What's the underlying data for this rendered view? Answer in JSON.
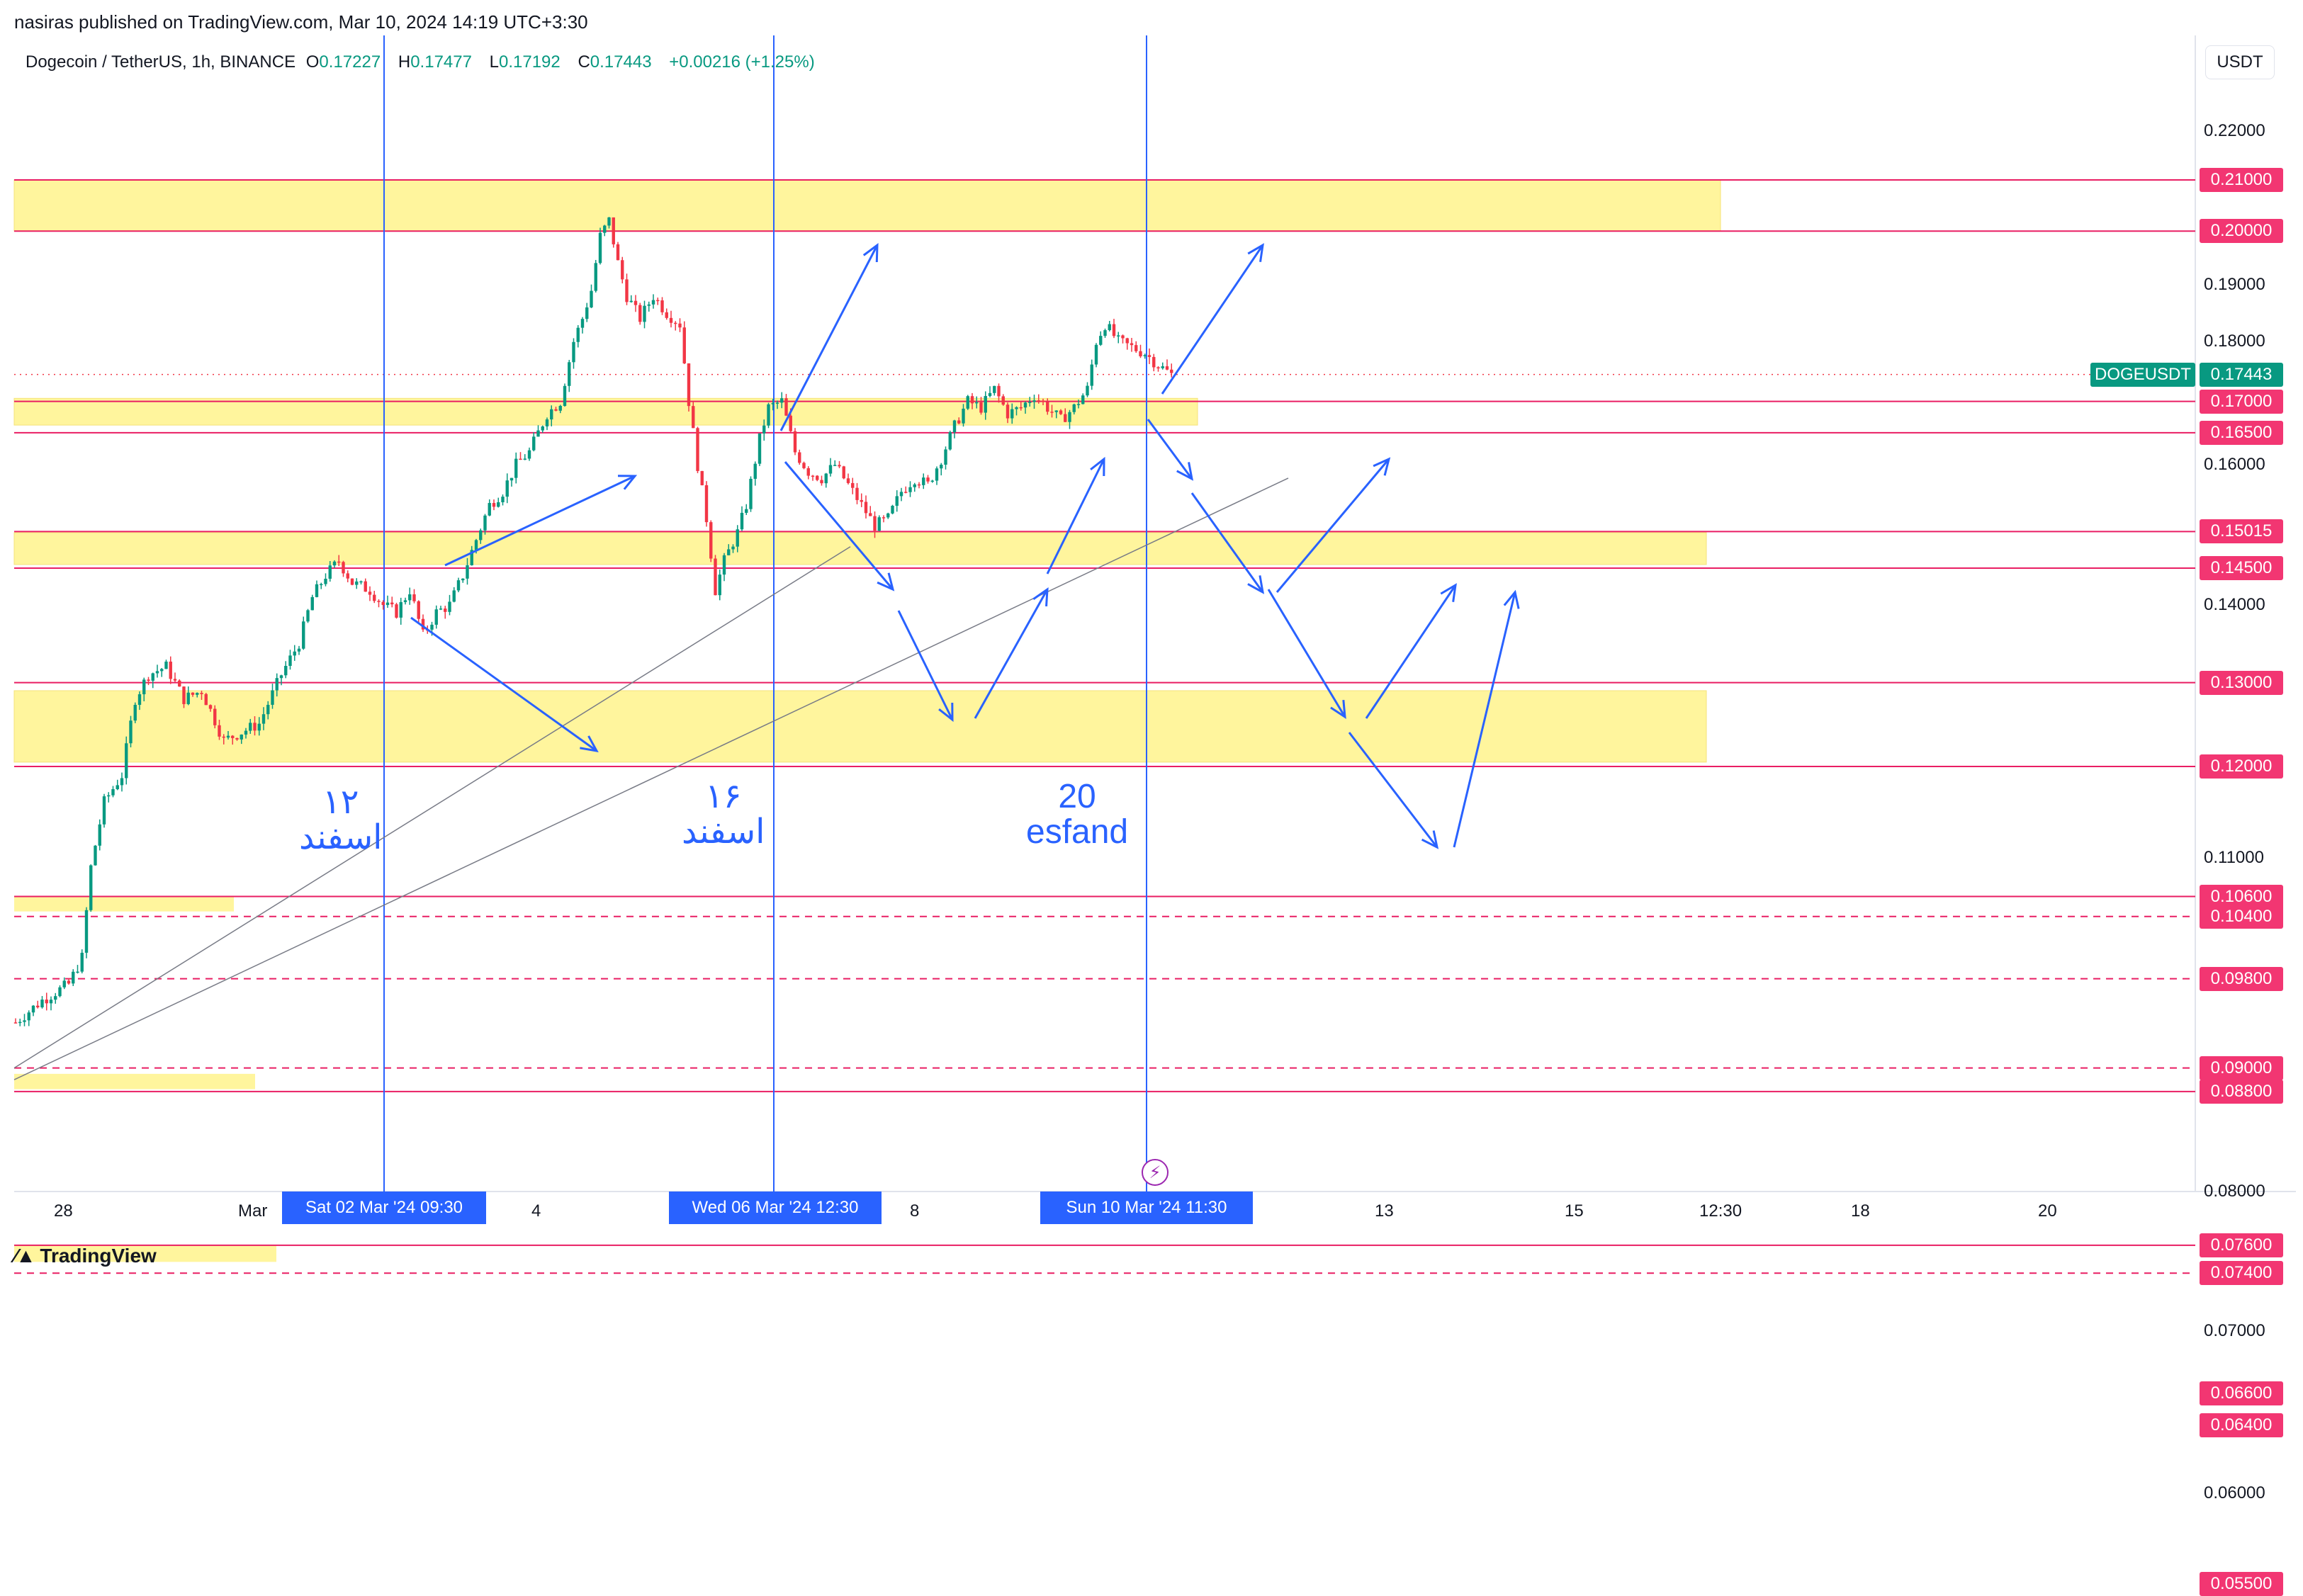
{
  "publisher_line": "nasiras published on TradingView.com, Mar 10, 2024 14:19 UTC+3:30",
  "header": {
    "symbol": "Dogecoin / TetherUS, 1h, BINANCE",
    "open_label": "O",
    "open": "0.17227",
    "high_label": "H",
    "high": "0.17477",
    "low_label": "L",
    "low": "0.17192",
    "close_label": "C",
    "close": "0.17443",
    "change": "+0.00216 (+1.25%)"
  },
  "currency": "USDT",
  "branding": "TradingView",
  "colors": {
    "up": "#089981",
    "down": "#f23645",
    "level": "#e91e63",
    "zone": "#fff59d",
    "drawing": "#2962ff",
    "trend": "#787b86"
  },
  "chart_data": {
    "type": "candlestick",
    "pair": "DOGEUSDT",
    "timeframe": "1h",
    "last_price": "0.17443",
    "y_scale": "log",
    "y_ticks": [
      "0.22000",
      "0.19000",
      "0.18000",
      "0.16000",
      "0.14000",
      "0.11000",
      "0.08000",
      "0.07000",
      "0.06000"
    ],
    "x_ticks": [
      "28",
      "Mar",
      "4",
      "8",
      "13",
      "15",
      "12:30",
      "18",
      "20"
    ],
    "crosshair_times": [
      "Sat 02 Mar '24   09:30",
      "Wed 06 Mar '24   12:30",
      "Sun 10 Mar '24   11:30"
    ],
    "horizontal_levels": [
      {
        "price": "0.21000",
        "style": "solid"
      },
      {
        "price": "0.20000",
        "style": "solid"
      },
      {
        "price": "0.17000",
        "style": "solid"
      },
      {
        "price": "0.16500",
        "style": "solid"
      },
      {
        "price": "0.15015",
        "style": "solid"
      },
      {
        "price": "0.14500",
        "style": "solid"
      },
      {
        "price": "0.13000",
        "style": "solid"
      },
      {
        "price": "0.12000",
        "style": "solid"
      },
      {
        "price": "0.10600",
        "style": "solid"
      },
      {
        "price": "0.10400",
        "style": "dashed"
      },
      {
        "price": "0.09800",
        "style": "dashed"
      },
      {
        "price": "0.09000",
        "style": "dashed"
      },
      {
        "price": "0.08800",
        "style": "solid"
      },
      {
        "price": "0.07600",
        "style": "solid"
      },
      {
        "price": "0.07400",
        "style": "dashed"
      },
      {
        "price": "0.06600",
        "style": "solid"
      },
      {
        "price": "0.06400",
        "style": "solid"
      },
      {
        "price": "0.05500",
        "style": "solid"
      }
    ],
    "zones": [
      {
        "from": 0.2,
        "to": 0.21
      },
      {
        "from": 0.1662,
        "to": 0.1705
      },
      {
        "from": 0.1455,
        "to": 0.15
      },
      {
        "from": 0.1205,
        "to": 0.129
      }
    ],
    "price_path": [
      [
        0,
        0.094
      ],
      [
        6,
        0.096
      ],
      [
        12,
        0.0975
      ],
      [
        15,
        0.1
      ],
      [
        17,
        0.109
      ],
      [
        20,
        0.116
      ],
      [
        24,
        0.119
      ],
      [
        27,
        0.128
      ],
      [
        30,
        0.131
      ],
      [
        34,
        0.132
      ],
      [
        38,
        0.128
      ],
      [
        42,
        0.129
      ],
      [
        47,
        0.123
      ],
      [
        51,
        0.124
      ],
      [
        55,
        0.125
      ],
      [
        60,
        0.131
      ],
      [
        64,
        0.135
      ],
      [
        67,
        0.141
      ],
      [
        70,
        0.144
      ],
      [
        73,
        0.146
      ],
      [
        76,
        0.143
      ],
      [
        80,
        0.142
      ],
      [
        83,
        0.14
      ],
      [
        86,
        0.139
      ],
      [
        89,
        0.142
      ],
      [
        92,
        0.136
      ],
      [
        95,
        0.139
      ],
      [
        98,
        0.14
      ],
      [
        101,
        0.144
      ],
      [
        104,
        0.149
      ],
      [
        107,
        0.154
      ],
      [
        110,
        0.156
      ],
      [
        113,
        0.16
      ],
      [
        116,
        0.162
      ],
      [
        118,
        0.165
      ],
      [
        120,
        0.168
      ],
      [
        123,
        0.17
      ],
      [
        126,
        0.18
      ],
      [
        128,
        0.184
      ],
      [
        130,
        0.189
      ],
      [
        132,
        0.199
      ],
      [
        134,
        0.202
      ],
      [
        136,
        0.194
      ],
      [
        138,
        0.188
      ],
      [
        141,
        0.184
      ],
      [
        144,
        0.188
      ],
      [
        147,
        0.185
      ],
      [
        150,
        0.183
      ],
      [
        152,
        0.17
      ],
      [
        154,
        0.16
      ],
      [
        156,
        0.152
      ],
      [
        158,
        0.142
      ],
      [
        160,
        0.146
      ],
      [
        163,
        0.15
      ],
      [
        165,
        0.154
      ],
      [
        168,
        0.164
      ],
      [
        170,
        0.169
      ],
      [
        173,
        0.17
      ],
      [
        176,
        0.162
      ],
      [
        179,
        0.159
      ],
      [
        182,
        0.158
      ],
      [
        185,
        0.16
      ],
      [
        188,
        0.157
      ],
      [
        191,
        0.154
      ],
      [
        194,
        0.151
      ],
      [
        197,
        0.152
      ],
      [
        200,
        0.156
      ],
      [
        203,
        0.158
      ],
      [
        206,
        0.157
      ],
      [
        209,
        0.161
      ],
      [
        212,
        0.166
      ],
      [
        215,
        0.17
      ],
      [
        218,
        0.169
      ],
      [
        221,
        0.172
      ],
      [
        224,
        0.168
      ],
      [
        227,
        0.169
      ],
      [
        230,
        0.171
      ],
      [
        233,
        0.169
      ],
      [
        236,
        0.167
      ],
      [
        239,
        0.169
      ],
      [
        242,
        0.172
      ],
      [
        244,
        0.18
      ],
      [
        246,
        0.183
      ],
      [
        249,
        0.18
      ],
      [
        252,
        0.179
      ],
      [
        255,
        0.178
      ],
      [
        258,
        0.176
      ],
      [
        261,
        0.1744
      ]
    ]
  },
  "annotations": [
    {
      "line1": "۱۲",
      "line2": "اسفند"
    },
    {
      "line1": "۱۶",
      "line2": "اسفند"
    },
    {
      "line1": "20",
      "line2": "esfand"
    }
  ]
}
